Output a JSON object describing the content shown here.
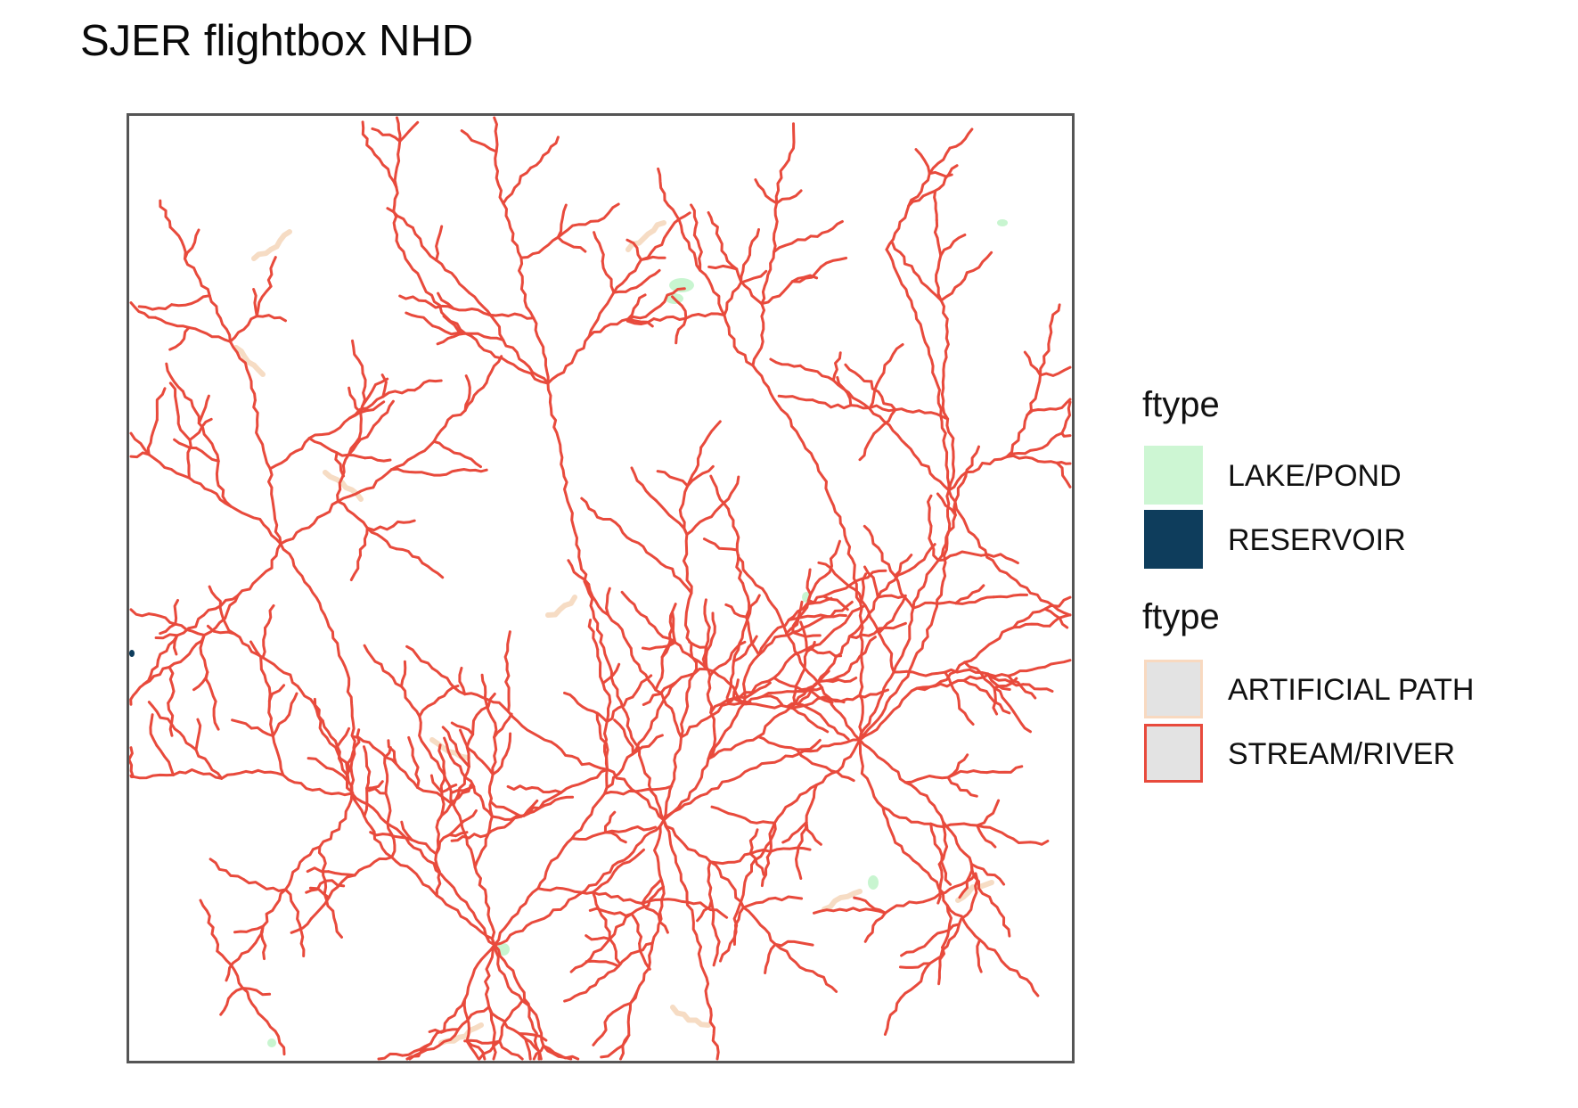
{
  "title": "SJER flightbox NHD",
  "map": {
    "colors": {
      "stream": "#e84a3c",
      "artificial_path": "#f6dcc4",
      "lake": "#c8f5d0",
      "reservoir": "#0e3d5c",
      "frame": "#555555"
    }
  },
  "legend": {
    "groups": [
      {
        "title": "ftype",
        "items": [
          {
            "label": "LAKE/POND",
            "fill": "#cdf6d3",
            "stroke": "none"
          },
          {
            "label": "RESERVOIR",
            "fill": "#0e3d5c",
            "stroke": "none"
          }
        ]
      },
      {
        "title": "ftype",
        "items": [
          {
            "label": "ARTIFICIAL PATH",
            "fill": "#e3e3e3",
            "stroke": "#f8d9c0"
          },
          {
            "label": "STREAM/RIVER",
            "fill": "#e3e3e3",
            "stroke": "#e84a3c"
          }
        ]
      }
    ]
  }
}
